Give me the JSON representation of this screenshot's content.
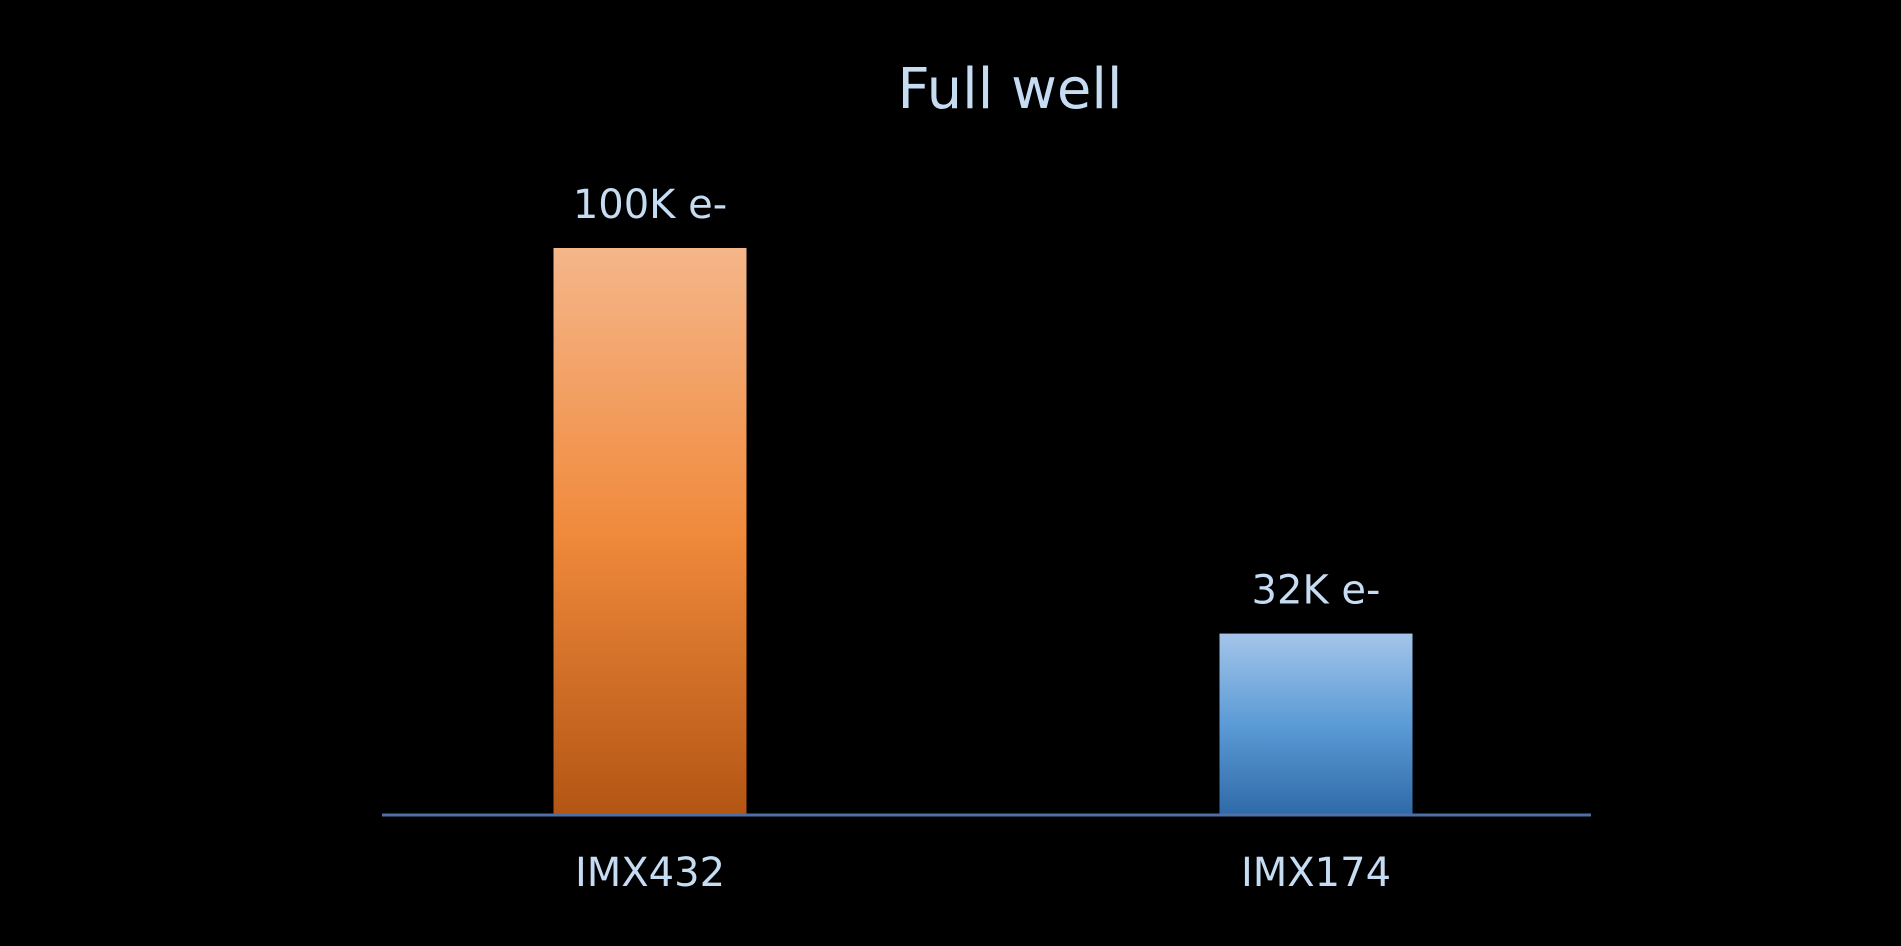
{
  "chart_data": {
    "type": "bar",
    "title": "Full well",
    "categories": [
      "IMX432",
      "IMX174"
    ],
    "values": [
      100000,
      32000
    ],
    "data_labels": [
      "100K e-",
      "32K e-"
    ],
    "xlabel": "",
    "ylabel": "",
    "ylim": [
      0,
      100000
    ],
    "grid": false,
    "legend": "none"
  },
  "colors": {
    "background": "#000000",
    "text": "#c6dcf3",
    "axis": "#4f6fa8",
    "bar_gradients": [
      [
        "#f5b68a",
        "#f08a3c",
        "#b35514"
      ],
      [
        "#a4c5ea",
        "#5b9bd6",
        "#2f6aa8"
      ]
    ]
  }
}
